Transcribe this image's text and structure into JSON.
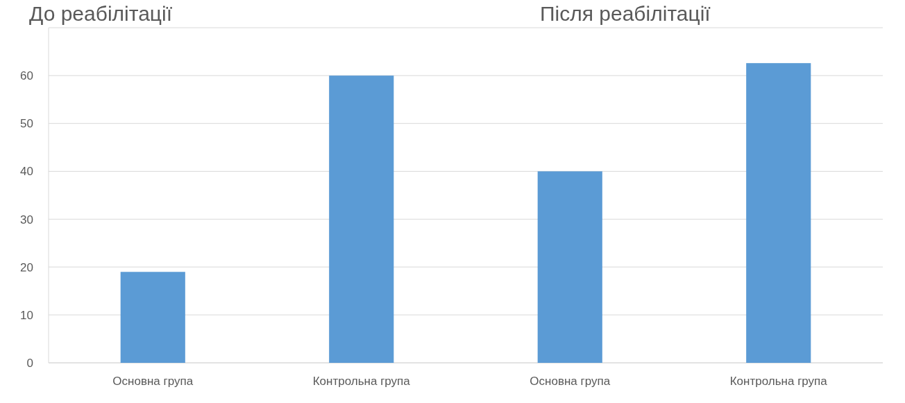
{
  "chart_data": {
    "type": "bar",
    "title": "До реабілітації",
    "annotations": [
      "Після реабілітації"
    ],
    "categories": [
      "Основна група",
      "Контрольна група",
      "Основна група",
      "Контрольна група"
    ],
    "values": [
      19,
      60,
      40,
      62.6
    ],
    "color": "#5b9bd5",
    "ylim": [
      0,
      70
    ],
    "yticks": [
      0,
      10,
      20,
      30,
      40,
      50,
      60
    ],
    "grid": "y"
  }
}
